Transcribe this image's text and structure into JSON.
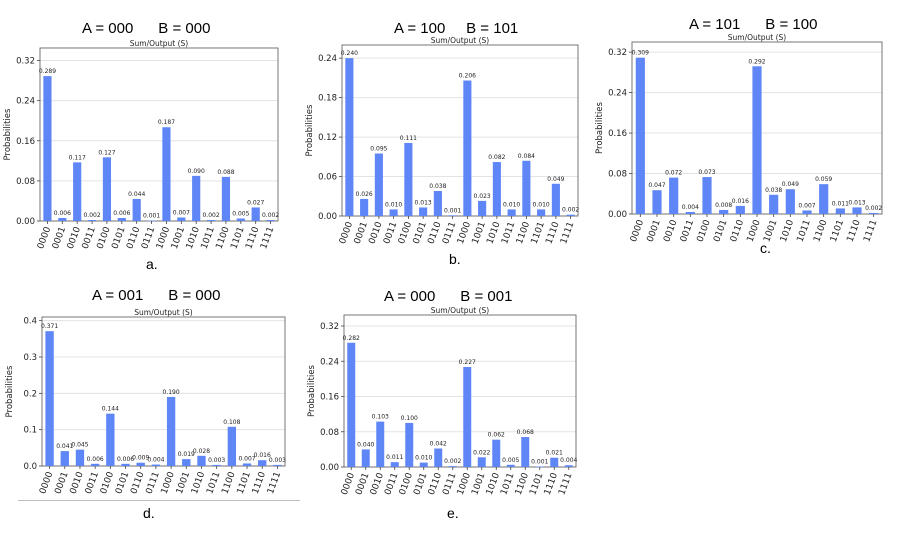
{
  "common": {
    "chart_title": "Sum/Output (S)",
    "ylabel": "Probabilities",
    "bar_color": "#5f86f7",
    "grid_color": "#e3e3e3"
  },
  "panels": [
    {
      "heading": "A = 000      B = 000",
      "caption": "a."
    },
    {
      "heading": "A = 100     B = 101",
      "caption": "b."
    },
    {
      "heading": "A = 101      B = 100",
      "caption": "c."
    },
    {
      "heading": "A = 001      B = 000",
      "caption": "d."
    },
    {
      "heading": "A = 000      B = 001",
      "caption": "e."
    }
  ],
  "chart_data": [
    {
      "type": "bar",
      "title": "Sum/Output (S)",
      "xlabel": "",
      "ylabel": "Probabilities",
      "categories": [
        "0000",
        "0001",
        "0010",
        "0011",
        "0100",
        "0101",
        "0110",
        "0111",
        "1000",
        "1001",
        "1010",
        "1011",
        "1100",
        "1101",
        "1110",
        "1111"
      ],
      "values": [
        0.289,
        0.006,
        0.117,
        0.002,
        0.127,
        0.006,
        0.044,
        0.001,
        0.187,
        0.007,
        0.09,
        0.002,
        0.088,
        0.005,
        0.027,
        0.002
      ],
      "data_labels": [
        "0.289",
        "0.006",
        "0.117",
        "0.002",
        "0.127",
        "0.006",
        "0.044",
        "0.001",
        "0.187",
        "0.007",
        "0.090",
        "0.002",
        "0.088",
        "0.005",
        "0.027",
        "0.002"
      ],
      "yticks": [
        "0.00",
        "0.08",
        "0.16",
        "0.24",
        "0.32"
      ],
      "ylim": [
        0,
        0.345
      ],
      "grid": true
    },
    {
      "type": "bar",
      "title": "Sum/Output (S)",
      "xlabel": "",
      "ylabel": "Probabilities",
      "categories": [
        "0000",
        "0001",
        "0010",
        "0011",
        "0100",
        "0101",
        "0110",
        "0111",
        "1000",
        "1001",
        "1010",
        "1011",
        "1100",
        "1101",
        "1110",
        "1111"
      ],
      "values": [
        0.24,
        0.026,
        0.095,
        0.01,
        0.111,
        0.013,
        0.038,
        0.001,
        0.206,
        0.023,
        0.082,
        0.01,
        0.084,
        0.01,
        0.049,
        0.002
      ],
      "data_labels": [
        "0.240",
        "0.026",
        "0.095",
        "0.010",
        "0.111",
        "0.013",
        "0.038",
        "0.001",
        "0.206",
        "0.023",
        "0.082",
        "0.010",
        "0.084",
        "0.010",
        "0.049",
        "0.002"
      ],
      "yticks": [
        "0.00",
        "0.06",
        "0.12",
        "0.18",
        "0.24"
      ],
      "ylim": [
        0,
        0.26
      ],
      "grid": true
    },
    {
      "type": "bar",
      "title": "Sum/Output (S)",
      "xlabel": "",
      "ylabel": "Probabilities",
      "categories": [
        "0000",
        "0001",
        "0010",
        "0011",
        "0100",
        "0101",
        "0110",
        "1000",
        "1001",
        "1010",
        "1011",
        "1100",
        "1101",
        "1110",
        "1111"
      ],
      "values": [
        0.309,
        0.047,
        0.072,
        0.004,
        0.073,
        0.008,
        0.016,
        0.292,
        0.038,
        0.049,
        0.007,
        0.059,
        0.011,
        0.013,
        0.002
      ],
      "data_labels": [
        "0.309",
        "0.047",
        "0.072",
        "0.004",
        "0.073",
        "0.008",
        "0.016",
        "0.292",
        "0.038",
        "0.049",
        "0.007",
        "0.059",
        "0.011",
        "0.013",
        "0.002"
      ],
      "yticks": [
        "0.00",
        "0.08",
        "0.16",
        "0.24",
        "0.32"
      ],
      "ylim": [
        0,
        0.34
      ],
      "grid": true
    },
    {
      "type": "bar",
      "title": "Sum/Output (S)",
      "xlabel": "",
      "ylabel": "Probabilities",
      "categories": [
        "0000",
        "0001",
        "0010",
        "0011",
        "0100",
        "0101",
        "0110",
        "0111",
        "1000",
        "1001",
        "1010",
        "1011",
        "1100",
        "1101",
        "1110",
        "1111"
      ],
      "values": [
        0.371,
        0.041,
        0.045,
        0.006,
        0.144,
        0.006,
        0.009,
        0.004,
        0.19,
        0.019,
        0.028,
        0.003,
        0.108,
        0.007,
        0.016,
        0.003
      ],
      "data_labels": [
        "0.371",
        "0.041",
        "0.045",
        "0.006",
        "0.144",
        "0.006",
        "0.009",
        "0.004",
        "0.190",
        "0.019",
        "0.028",
        "0.003",
        "0.108",
        "0.007",
        "0.016",
        "0.003"
      ],
      "yticks": [
        "0.0",
        "0.1",
        "0.2",
        "0.3",
        "0.4"
      ],
      "ylim": [
        0,
        0.41
      ],
      "grid": true
    },
    {
      "type": "bar",
      "title": "Sum/Output (S)",
      "xlabel": "",
      "ylabel": "Probabilities",
      "categories": [
        "0000",
        "0001",
        "0010",
        "0011",
        "0100",
        "0101",
        "0110",
        "0111",
        "1000",
        "1001",
        "1010",
        "1011",
        "1100",
        "1101",
        "1110",
        "1111"
      ],
      "values": [
        0.282,
        0.04,
        0.103,
        0.011,
        0.1,
        0.01,
        0.042,
        0.002,
        0.227,
        0.022,
        0.062,
        0.005,
        0.068,
        0.001,
        0.021,
        0.004
      ],
      "data_labels": [
        "0.282",
        "0.040",
        "0.103",
        "0.011",
        "0.100",
        "0.010",
        "0.042",
        "0.002",
        "0.227",
        "0.022",
        "0.062",
        "0.005",
        "0.068",
        "0.001",
        "0.021",
        "0.004"
      ],
      "yticks": [
        "0.00",
        "0.08",
        "0.16",
        "0.24",
        "0.32"
      ],
      "ylim": [
        0,
        0.345
      ],
      "grid": true
    }
  ]
}
